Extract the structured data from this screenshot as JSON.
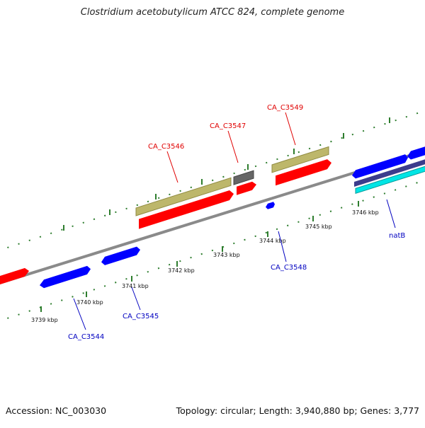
{
  "title": "Clostridium acetobutylicum ATCC 824, complete genome",
  "footer": {
    "accession": "Accession: NC_003030",
    "summary": "Topology: circular; Length: 3,940,880 bp; Genes: 3,777"
  },
  "colors": {
    "forward_cds": "#ff0000",
    "reverse_cds": "#0000ff",
    "rrna_like": "#bdb76b",
    "gray_feature": "#666666",
    "cyan_feature": "#00e5e5",
    "indigo_feature": "#3c3c8c",
    "backbone": "#8a8a8a",
    "ticks": "#2e7d2e",
    "forward_label": "#e00000",
    "reverse_label": "#0000c0"
  },
  "scale_labels": [
    "3739 kbp",
    "3740 kbp",
    "3741 kbp",
    "3742 kbp",
    "3743 kbp",
    "3744 kbp",
    "3745 kbp",
    "3746 kbp"
  ],
  "gene_labels": {
    "forward": [
      "CA_C3546",
      "CA_C3547",
      "CA_C3549"
    ],
    "reverse": [
      "CA_C3544",
      "CA_C3545",
      "CA_C3548",
      "natB"
    ]
  }
}
